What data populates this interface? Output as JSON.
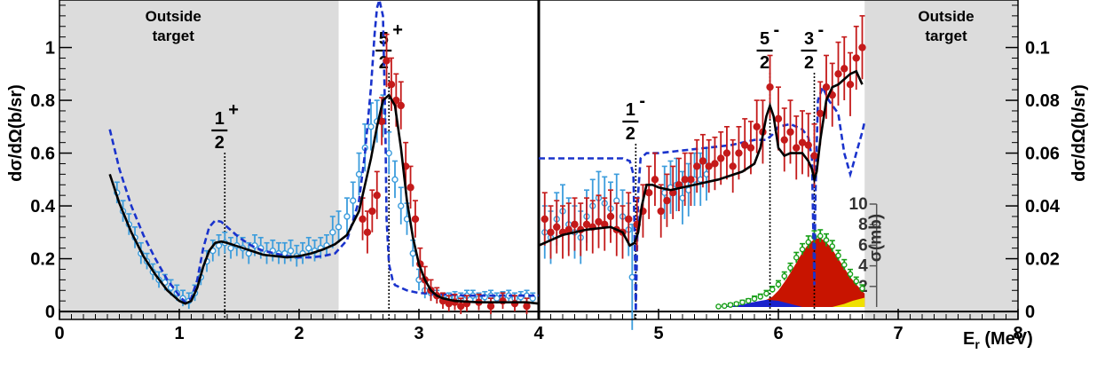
{
  "chart_data": {
    "type": "scatter",
    "xlabel": "E",
    "xlabel_sub": "r",
    "xlabel_unit": "(MeV)",
    "ylabel_left": "dσ/dΩ(b/sr)",
    "ylabel_right": "dσ/dΩ(b/sr)",
    "inset_ylabel": "σ(mb)",
    "xlim": [
      0,
      8
    ],
    "ylim_left": [
      -0.03,
      1.18
    ],
    "ylim_right": [
      -0.003,
      0.118
    ],
    "ylim_inset": [
      0,
      10
    ],
    "grid": false,
    "legend": "none",
    "x_ticks": [
      "0",
      "1",
      "2",
      "3",
      "4",
      "5",
      "6",
      "7",
      "8"
    ],
    "y_ticks_left": [
      "0",
      "0.2",
      "0.4",
      "0.6",
      "0.8",
      "1"
    ],
    "y_ticks_right": [
      "0",
      "0.02",
      "0.04",
      "0.06",
      "0.08",
      "0.1"
    ],
    "inset_ticks": [
      "2",
      "4",
      "6",
      "8",
      "10"
    ],
    "shaded_regions": [
      {
        "x": [
          0,
          2.33
        ],
        "label_top": "Outside",
        "label_bottom": "target"
      },
      {
        "x": [
          6.72,
          8
        ],
        "label_top": "Outside",
        "label_bottom": "target"
      }
    ],
    "resonances": [
      {
        "x": 1.38,
        "num": "1",
        "den": "2",
        "parity": "+"
      },
      {
        "x": 2.75,
        "num": "5",
        "den": "2",
        "parity": "+"
      },
      {
        "x": 4.81,
        "num": "1",
        "den": "2",
        "parity": "-"
      },
      {
        "x": 5.93,
        "num": "5",
        "den": "2",
        "parity": "-"
      },
      {
        "x": 6.3,
        "num": "3",
        "den": "2",
        "parity": "-"
      }
    ],
    "colors": {
      "shade": "#dcdcdc",
      "fit_line": "#000000",
      "dashed": "#1a33cc",
      "open_points": "#3b9cdc",
      "filled_points": "#c41a1a",
      "inset_points": "#18a018",
      "area_red": "#c81400",
      "area_blue": "#1a22cc",
      "area_yellow": "#f0e000"
    },
    "series": [
      {
        "id": "fit",
        "axis": "left",
        "x": [
          0.42,
          0.5,
          0.6,
          0.7,
          0.8,
          0.9,
          1.0,
          1.05,
          1.1,
          1.15,
          1.2,
          1.25,
          1.3,
          1.35,
          1.4,
          1.5,
          1.6,
          1.7,
          1.8,
          1.9,
          2.0,
          2.1,
          2.2,
          2.3,
          2.4,
          2.5,
          2.55,
          2.6,
          2.65,
          2.7,
          2.75,
          2.8,
          2.85,
          2.9,
          2.95,
          3.0,
          3.05,
          3.1,
          3.15,
          3.2,
          3.3,
          3.5,
          3.7,
          3.9,
          4.0
        ],
        "y": [
          0.52,
          0.41,
          0.3,
          0.21,
          0.14,
          0.08,
          0.04,
          0.03,
          0.04,
          0.09,
          0.17,
          0.23,
          0.26,
          0.265,
          0.26,
          0.245,
          0.23,
          0.215,
          0.21,
          0.205,
          0.21,
          0.22,
          0.235,
          0.255,
          0.29,
          0.38,
          0.48,
          0.58,
          0.7,
          0.8,
          0.82,
          0.78,
          0.62,
          0.42,
          0.28,
          0.18,
          0.12,
          0.08,
          0.06,
          0.05,
          0.04,
          0.035,
          0.035,
          0.035,
          0.03
        ]
      },
      {
        "id": "fit",
        "axis": "right",
        "x": [
          4.0,
          4.2,
          4.4,
          4.6,
          4.7,
          4.76,
          4.8,
          4.83,
          4.86,
          4.9,
          4.95,
          5.0,
          5.1,
          5.3,
          5.5,
          5.7,
          5.8,
          5.85,
          5.9,
          5.93,
          5.96,
          6.0,
          6.05,
          6.1,
          6.15,
          6.2,
          6.25,
          6.28,
          6.3,
          6.32,
          6.35,
          6.4,
          6.45,
          6.5,
          6.55,
          6.6,
          6.65,
          6.7
        ],
        "y": [
          0.025,
          0.029,
          0.031,
          0.032,
          0.03,
          0.025,
          0.026,
          0.03,
          0.04,
          0.048,
          0.048,
          0.047,
          0.046,
          0.048,
          0.05,
          0.053,
          0.056,
          0.062,
          0.074,
          0.078,
          0.074,
          0.062,
          0.059,
          0.06,
          0.06,
          0.06,
          0.057,
          0.054,
          0.05,
          0.053,
          0.065,
          0.08,
          0.085,
          0.086,
          0.088,
          0.09,
          0.091,
          0.086
        ]
      },
      {
        "id": "dashed",
        "axis": "left",
        "x": [
          0.42,
          0.5,
          0.6,
          0.7,
          0.8,
          0.9,
          1.0,
          1.05,
          1.1,
          1.15,
          1.2,
          1.25,
          1.3,
          1.35,
          1.4,
          1.5,
          1.6,
          1.7,
          1.8,
          1.9,
          2.0,
          2.1,
          2.2,
          2.3,
          2.4,
          2.5,
          2.55,
          2.6,
          2.63,
          2.65,
          2.67,
          2.7,
          2.72,
          2.73,
          2.75,
          2.78,
          2.8,
          2.9,
          3.0,
          3.2,
          3.4,
          3.6,
          3.8,
          4.0
        ],
        "y": [
          0.69,
          0.54,
          0.4,
          0.29,
          0.2,
          0.12,
          0.06,
          0.035,
          0.05,
          0.12,
          0.24,
          0.32,
          0.345,
          0.34,
          0.32,
          0.28,
          0.25,
          0.23,
          0.22,
          0.21,
          0.205,
          0.205,
          0.21,
          0.22,
          0.27,
          0.42,
          0.6,
          0.85,
          1.05,
          1.15,
          1.18,
          1.12,
          0.7,
          0.35,
          0.18,
          0.12,
          0.1,
          0.08,
          0.07,
          0.065,
          0.06,
          0.06,
          0.06,
          0.06
        ]
      },
      {
        "id": "dashed",
        "axis": "right",
        "x": [
          4.0,
          4.2,
          4.4,
          4.6,
          4.7,
          4.76,
          4.79,
          4.8,
          4.81,
          4.83,
          4.85,
          4.9,
          5.0,
          5.2,
          5.4,
          5.6,
          5.8,
          5.9,
          5.95,
          6.0,
          6.1,
          6.2,
          6.25,
          6.28,
          6.3,
          6.31,
          6.33,
          6.37,
          6.42,
          6.5,
          6.55,
          6.6,
          6.62,
          6.65,
          6.7,
          6.72
        ],
        "y": [
          0.058,
          0.058,
          0.058,
          0.058,
          0.058,
          0.057,
          0.052,
          0.03,
          0.0,
          0.045,
          0.058,
          0.06,
          0.06,
          0.061,
          0.062,
          0.063,
          0.065,
          0.065,
          0.067,
          0.07,
          0.071,
          0.069,
          0.066,
          0.058,
          0.01,
          0.045,
          0.08,
          0.085,
          0.08,
          0.075,
          0.06,
          0.052,
          0.055,
          0.06,
          0.068,
          0.072
        ]
      },
      {
        "id": "open_points",
        "axis": "left",
        "x": [
          0.48,
          0.53,
          0.58,
          0.63,
          0.68,
          0.73,
          0.78,
          0.83,
          0.88,
          0.93,
          0.98,
          1.03,
          1.08,
          1.13,
          1.18,
          1.23,
          1.28,
          1.33,
          1.38,
          1.43,
          1.48,
          1.53,
          1.58,
          1.63,
          1.68,
          1.73,
          1.78,
          1.83,
          1.88,
          1.93,
          1.98,
          2.03,
          2.08,
          2.13,
          2.18,
          2.23,
          2.28,
          2.33,
          2.4,
          2.45,
          2.5,
          2.55,
          2.6,
          2.65,
          2.7,
          2.75,
          2.8,
          2.85,
          2.9,
          2.95,
          3.0,
          3.05,
          3.1,
          3.15,
          3.2,
          3.25,
          3.3,
          3.35,
          3.4,
          3.45,
          3.5,
          3.55,
          3.6,
          3.65,
          3.7,
          3.75,
          3.8,
          3.85,
          3.9,
          3.95
        ],
        "y": [
          0.45,
          0.38,
          0.33,
          0.28,
          0.22,
          0.19,
          0.15,
          0.12,
          0.11,
          0.09,
          0.07,
          0.05,
          0.04,
          0.07,
          0.13,
          0.19,
          0.23,
          0.25,
          0.26,
          0.24,
          0.25,
          0.24,
          0.22,
          0.25,
          0.24,
          0.22,
          0.23,
          0.22,
          0.22,
          0.23,
          0.21,
          0.22,
          0.24,
          0.23,
          0.24,
          0.25,
          0.3,
          0.32,
          0.36,
          0.42,
          0.52,
          0.62,
          0.7,
          0.72,
          0.74,
          0.6,
          0.5,
          0.4,
          0.35,
          0.22,
          0.12,
          0.08,
          0.07,
          0.06,
          0.05,
          0.05,
          0.055,
          0.05,
          0.06,
          0.06,
          0.05,
          0.055,
          0.06,
          0.05,
          0.055,
          0.06,
          0.05,
          0.055,
          0.06,
          0.05
        ],
        "err": [
          0.04,
          0.04,
          0.04,
          0.04,
          0.04,
          0.03,
          0.03,
          0.03,
          0.03,
          0.03,
          0.03,
          0.03,
          0.03,
          0.03,
          0.03,
          0.04,
          0.04,
          0.04,
          0.04,
          0.04,
          0.04,
          0.04,
          0.04,
          0.04,
          0.04,
          0.04,
          0.04,
          0.04,
          0.04,
          0.04,
          0.04,
          0.04,
          0.04,
          0.04,
          0.04,
          0.04,
          0.06,
          0.06,
          0.07,
          0.07,
          0.08,
          0.09,
          0.09,
          0.08,
          0.08,
          0.08,
          0.07,
          0.07,
          0.06,
          0.05,
          0.04,
          0.03,
          0.02,
          0.02,
          0.02,
          0.02,
          0.02,
          0.02,
          0.02,
          0.02,
          0.02,
          0.02,
          0.02,
          0.02,
          0.02,
          0.02,
          0.02,
          0.02,
          0.02,
          0.02
        ]
      },
      {
        "id": "open_points",
        "axis": "right",
        "x": [
          4.05,
          4.1,
          4.15,
          4.2,
          4.25,
          4.3,
          4.35,
          4.4,
          4.45,
          4.5,
          4.55,
          4.6,
          4.65,
          4.7,
          4.75,
          4.78,
          5.05,
          5.1,
          5.15,
          5.2,
          5.25,
          5.3,
          5.35,
          5.4
        ],
        "y": [
          0.03,
          0.028,
          0.035,
          0.038,
          0.033,
          0.03,
          0.028,
          0.036,
          0.04,
          0.043,
          0.041,
          0.039,
          0.042,
          0.036,
          0.031,
          0.013,
          0.045,
          0.047,
          0.048,
          0.043,
          0.046,
          0.05,
          0.05,
          0.052
        ],
        "err": [
          0.01,
          0.01,
          0.01,
          0.01,
          0.01,
          0.01,
          0.01,
          0.01,
          0.01,
          0.01,
          0.01,
          0.01,
          0.01,
          0.01,
          0.01,
          0.02,
          0.01,
          0.01,
          0.01,
          0.01,
          0.01,
          0.01,
          0.01,
          0.01
        ]
      },
      {
        "id": "filled_points",
        "axis": "left",
        "x": [
          2.53,
          2.57,
          2.61,
          2.65,
          2.69,
          2.73,
          2.77,
          2.81,
          2.85,
          2.89,
          2.93,
          2.97,
          3.01,
          3.05,
          3.1,
          3.15,
          3.2,
          3.25,
          3.3,
          3.35,
          3.4,
          3.5,
          3.6,
          3.7,
          3.8,
          3.9
        ],
        "y": [
          0.35,
          0.3,
          0.38,
          0.44,
          0.72,
          0.95,
          0.86,
          0.8,
          0.78,
          0.55,
          0.47,
          0.35,
          0.18,
          0.12,
          0.08,
          0.06,
          0.04,
          0.03,
          0.035,
          0.02,
          0.03,
          0.035,
          0.02,
          0.04,
          0.03,
          0.02
        ],
        "err": [
          0.08,
          0.08,
          0.08,
          0.09,
          0.09,
          0.1,
          0.1,
          0.1,
          0.09,
          0.09,
          0.08,
          0.07,
          0.06,
          0.05,
          0.04,
          0.03,
          0.03,
          0.03,
          0.03,
          0.03,
          0.03,
          0.03,
          0.03,
          0.03,
          0.03,
          0.03
        ]
      },
      {
        "id": "filled_points",
        "axis": "right",
        "x": [
          4.05,
          4.1,
          4.15,
          4.2,
          4.25,
          4.3,
          4.35,
          4.4,
          4.45,
          4.5,
          4.55,
          4.6,
          4.65,
          4.7,
          4.75,
          4.82,
          4.87,
          4.92,
          4.97,
          5.02,
          5.07,
          5.12,
          5.17,
          5.22,
          5.27,
          5.32,
          5.37,
          5.42,
          5.47,
          5.52,
          5.57,
          5.62,
          5.67,
          5.72,
          5.77,
          5.82,
          5.87,
          5.93,
          6.0,
          6.05,
          6.1,
          6.15,
          6.2,
          6.25,
          6.3,
          6.35,
          6.4,
          6.45,
          6.5,
          6.55,
          6.6,
          6.65,
          6.7
        ],
        "y": [
          0.035,
          0.03,
          0.032,
          0.03,
          0.031,
          0.033,
          0.031,
          0.033,
          0.032,
          0.034,
          0.033,
          0.036,
          0.031,
          0.03,
          0.035,
          0.033,
          0.038,
          0.045,
          0.05,
          0.038,
          0.042,
          0.045,
          0.048,
          0.05,
          0.05,
          0.055,
          0.057,
          0.055,
          0.056,
          0.058,
          0.06,
          0.055,
          0.06,
          0.063,
          0.062,
          0.07,
          0.068,
          0.085,
          0.073,
          0.065,
          0.068,
          0.062,
          0.064,
          0.063,
          0.059,
          0.075,
          0.085,
          0.082,
          0.09,
          0.092,
          0.086,
          0.096,
          0.1
        ],
        "err": [
          0.01,
          0.01,
          0.01,
          0.01,
          0.01,
          0.01,
          0.01,
          0.01,
          0.01,
          0.01,
          0.01,
          0.01,
          0.01,
          0.01,
          0.01,
          0.01,
          0.01,
          0.01,
          0.01,
          0.01,
          0.01,
          0.01,
          0.01,
          0.01,
          0.01,
          0.01,
          0.01,
          0.01,
          0.01,
          0.01,
          0.01,
          0.01,
          0.01,
          0.01,
          0.01,
          0.01,
          0.012,
          0.012,
          0.012,
          0.012,
          0.012,
          0.012,
          0.012,
          0.012,
          0.012,
          0.012,
          0.012,
          0.012,
          0.012,
          0.012,
          0.012,
          0.012,
          0.012
        ]
      },
      {
        "id": "inset_points",
        "axis": "inset",
        "x": [
          5.5,
          5.55,
          5.6,
          5.65,
          5.7,
          5.75,
          5.8,
          5.85,
          5.9,
          5.95,
          6.0,
          6.05,
          6.1,
          6.15,
          6.2,
          6.25,
          6.3,
          6.35,
          6.4,
          6.45,
          6.5,
          6.55,
          6.6,
          6.65,
          6.7
        ],
        "y": [
          0.05,
          0.1,
          0.2,
          0.3,
          0.45,
          0.6,
          0.8,
          1.0,
          1.3,
          1.7,
          2.2,
          3.0,
          3.8,
          4.8,
          5.6,
          6.3,
          6.8,
          6.9,
          6.5,
          5.9,
          5.0,
          4.1,
          3.2,
          2.5,
          1.8
        ],
        "err": [
          0.1,
          0.1,
          0.15,
          0.15,
          0.2,
          0.2,
          0.25,
          0.25,
          0.3,
          0.3,
          0.35,
          0.4,
          0.45,
          0.5,
          0.55,
          0.6,
          0.6,
          0.6,
          0.6,
          0.55,
          0.5,
          0.5,
          0.45,
          0.4,
          0.35
        ]
      },
      {
        "id": "area_red",
        "axis": "inset",
        "x": [
          5.75,
          5.85,
          5.95,
          6.0,
          6.05,
          6.1,
          6.15,
          6.2,
          6.25,
          6.3,
          6.35,
          6.4,
          6.45,
          6.5,
          6.55,
          6.6,
          6.65,
          6.72
        ],
        "y": [
          0.1,
          0.4,
          1.0,
          1.6,
          2.4,
          3.3,
          4.3,
          5.3,
          6.1,
          6.6,
          6.7,
          6.3,
          5.6,
          4.7,
          3.8,
          2.9,
          2.2,
          1.3
        ]
      },
      {
        "id": "area_blue",
        "axis": "inset",
        "x": [
          5.5,
          5.6,
          5.7,
          5.8,
          5.9,
          6.0,
          6.1,
          6.2
        ],
        "y": [
          0.02,
          0.1,
          0.25,
          0.5,
          0.7,
          0.6,
          0.3,
          0.0
        ]
      },
      {
        "id": "area_yellow",
        "axis": "inset",
        "x": [
          6.45,
          6.55,
          6.62,
          6.72
        ],
        "y": [
          0.0,
          0.3,
          0.6,
          0.9
        ]
      }
    ]
  }
}
